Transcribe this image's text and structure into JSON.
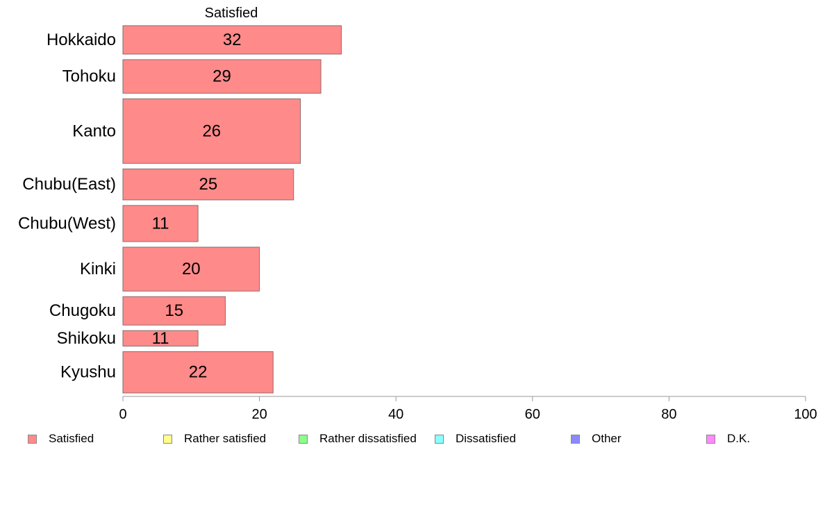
{
  "chart_data": {
    "type": "bar",
    "orientation": "horizontal",
    "series_label_top": "Satisfied",
    "categories": [
      "Hokkaido",
      "Tohoku",
      "Kanto",
      "Chubu(East)",
      "Chubu(West)",
      "Kinki",
      "Chugoku",
      "Shikoku",
      "Kyushu"
    ],
    "values": [
      32,
      29,
      26,
      25,
      11,
      20,
      15,
      11,
      22
    ],
    "bar_weights": [
      0.55,
      0.65,
      1.25,
      0.6,
      0.7,
      0.85,
      0.55,
      0.3,
      0.8
    ],
    "xlim": [
      0,
      100
    ],
    "xticks": [
      0,
      20,
      40,
      60,
      80,
      100
    ],
    "xlabel": "",
    "ylabel": "",
    "grid": false,
    "legend_position": "bottom",
    "legend": [
      {
        "label": "Satisfied",
        "color": "#ff8a8a"
      },
      {
        "label": "Rather satisfied",
        "color": "#ffff8a"
      },
      {
        "label": "Rather dissatisfied",
        "color": "#8aff8a"
      },
      {
        "label": "Dissatisfied",
        "color": "#8affff"
      },
      {
        "label": "Other",
        "color": "#8a8aff"
      },
      {
        "label": "D.K.",
        "color": "#ff8aff"
      }
    ],
    "bar_color": "#ff8a8a",
    "bar_edge_color": "#8a6a6a"
  }
}
